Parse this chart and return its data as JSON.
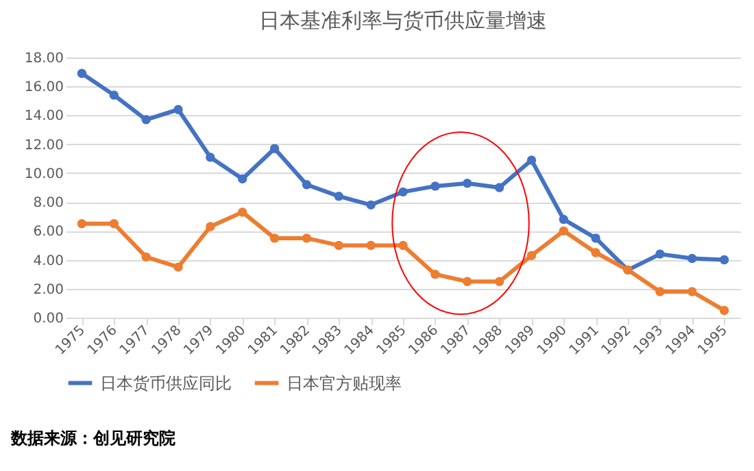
{
  "chart_data": {
    "type": "line",
    "title": "日本基准利率与货币供应量增速",
    "categories": [
      "1975",
      "1976",
      "1977",
      "1978",
      "1979",
      "1980",
      "1981",
      "1982",
      "1983",
      "1984",
      "1985",
      "1986",
      "1987",
      "1988",
      "1989",
      "1990",
      "1991",
      "1992",
      "1993",
      "1994",
      "1995"
    ],
    "series": [
      {
        "name": "日本货币供应同比",
        "color": "#4472c4",
        "values": [
          16.9,
          15.4,
          13.7,
          14.4,
          11.1,
          9.6,
          11.7,
          9.2,
          8.4,
          7.8,
          8.7,
          9.1,
          9.3,
          9.0,
          10.9,
          6.8,
          5.5,
          3.3,
          4.4,
          4.1,
          4.0
        ]
      },
      {
        "name": "日本官方贴现率",
        "color": "#ed7d31",
        "values": [
          6.5,
          6.5,
          4.2,
          3.5,
          6.3,
          7.3,
          5.5,
          5.5,
          5.0,
          5.0,
          5.0,
          3.0,
          2.5,
          2.5,
          4.3,
          6.0,
          4.5,
          3.3,
          1.8,
          1.8,
          0.5
        ]
      }
    ],
    "ylim": [
      0,
      18
    ],
    "yticks": [
      {
        "value": 0,
        "label": "0.00"
      },
      {
        "value": 2,
        "label": "2.00"
      },
      {
        "value": 4,
        "label": "4.00"
      },
      {
        "value": 6,
        "label": "6.00"
      },
      {
        "value": 8,
        "label": "8.00"
      },
      {
        "value": 10,
        "label": "10.00"
      },
      {
        "value": 12,
        "label": "12.00"
      },
      {
        "value": 14,
        "label": "14.00"
      },
      {
        "value": 16,
        "label": "16.00"
      },
      {
        "value": 18,
        "label": "18.00"
      }
    ],
    "grid": "y",
    "legend": "bottom",
    "marker": "circle",
    "line_style": "solid",
    "annotations": [
      "数据来源：创见研究院"
    ]
  }
}
